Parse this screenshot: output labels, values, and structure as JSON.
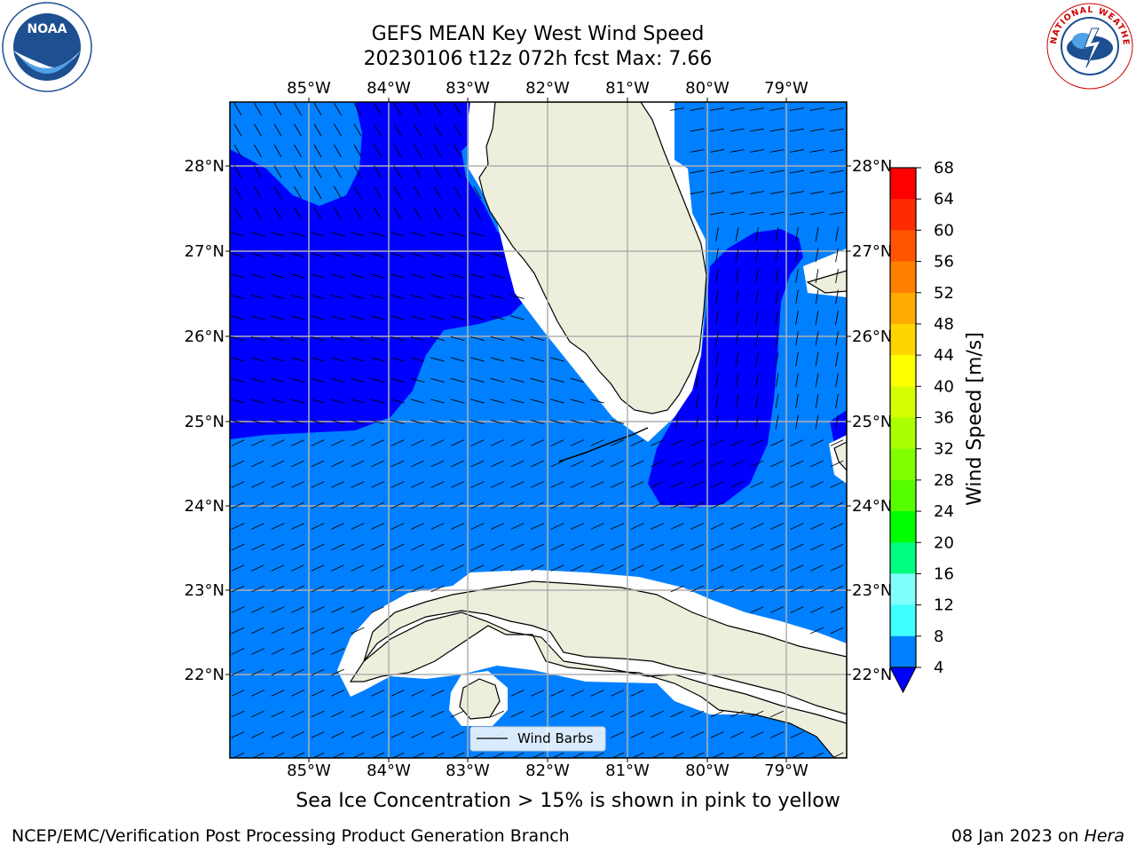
{
  "title": {
    "line1": "GEFS MEAN Key West Wind Speed",
    "line2": "20230106 t12z 072h fcst   Max: 7.66"
  },
  "logos": {
    "left": {
      "name": "noaa-logo",
      "text": "NOAA"
    },
    "right": {
      "name": "nws-logo",
      "text": "NATIONAL WEATHER SERVICE"
    }
  },
  "axes": {
    "lon_labels": [
      "85°W",
      "84°W",
      "83°W",
      "82°W",
      "81°W",
      "80°W",
      "79°W"
    ],
    "lat_labels": [
      "28°N",
      "27°N",
      "26°N",
      "25°N",
      "24°N",
      "23°N",
      "22°N"
    ]
  },
  "colorbar": {
    "label": "Wind Speed [m/s]",
    "ticks": [
      "68",
      "64",
      "60",
      "56",
      "52",
      "48",
      "44",
      "40",
      "36",
      "32",
      "28",
      "24",
      "20",
      "16",
      "12",
      "8",
      "4"
    ],
    "colors": [
      "#ff0000",
      "#ff2a00",
      "#ff5500",
      "#ff8000",
      "#ffaa00",
      "#ffd500",
      "#ffff00",
      "#d5ff00",
      "#aaff00",
      "#80ff00",
      "#55ff00",
      "#00ff00",
      "#00ff80",
      "#80ffff",
      "#40ffff",
      "#00ffff",
      "#00d4ff",
      "#0080ff"
    ],
    "under_color": "#0000ff"
  },
  "legend": {
    "label": "Wind Barbs"
  },
  "map_colors": {
    "land": "#eeeedd",
    "low_wind": "#0000ff",
    "mid_wind": "#0080ff",
    "gridline": "#b0b0b0"
  },
  "subtitle": "Sea Ice Concentration > 15% is shown in pink to yellow",
  "footer": {
    "left": "NCEP/EMC/Verification Post Processing Product Generation Branch",
    "right_date": "08 Jan 2023 on ",
    "right_host": "Hera"
  }
}
